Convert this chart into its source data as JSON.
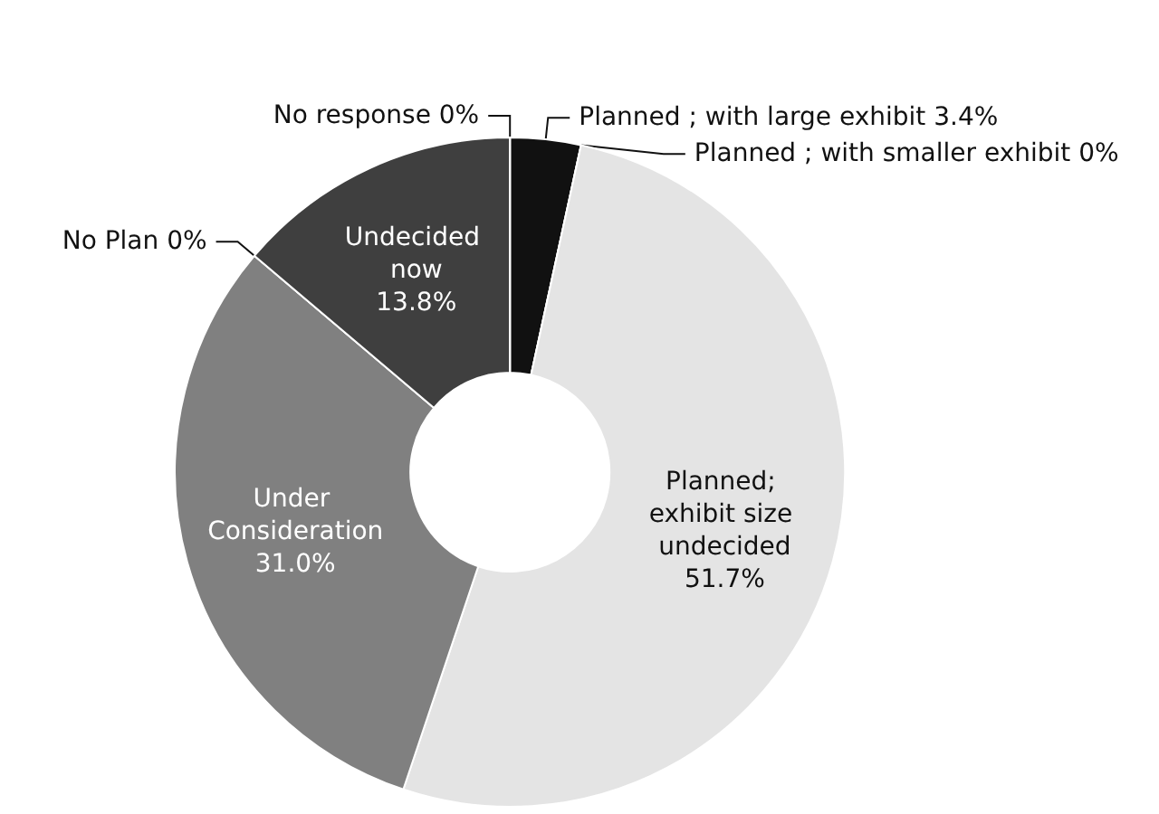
{
  "chart_data": {
    "type": "donut",
    "categories": [
      "Planned ; with large exhibit",
      "Planned ; with smaller exhibit",
      "Planned; exhibit size undecided",
      "Under Consideration",
      "No Plan",
      "Undecided now",
      "No response"
    ],
    "values": [
      3.4,
      0,
      51.7,
      31.0,
      0,
      13.8,
      0
    ],
    "value_labels": [
      "3.4%",
      "0%",
      "51.7%",
      "31.0%",
      "0%",
      "13.8%",
      "0%"
    ],
    "colors": [
      "#111111",
      "#c8c8c8",
      "#e4e4e4",
      "#808080",
      "#a0a0a0",
      "#3f3f3f",
      "#606060"
    ]
  }
}
